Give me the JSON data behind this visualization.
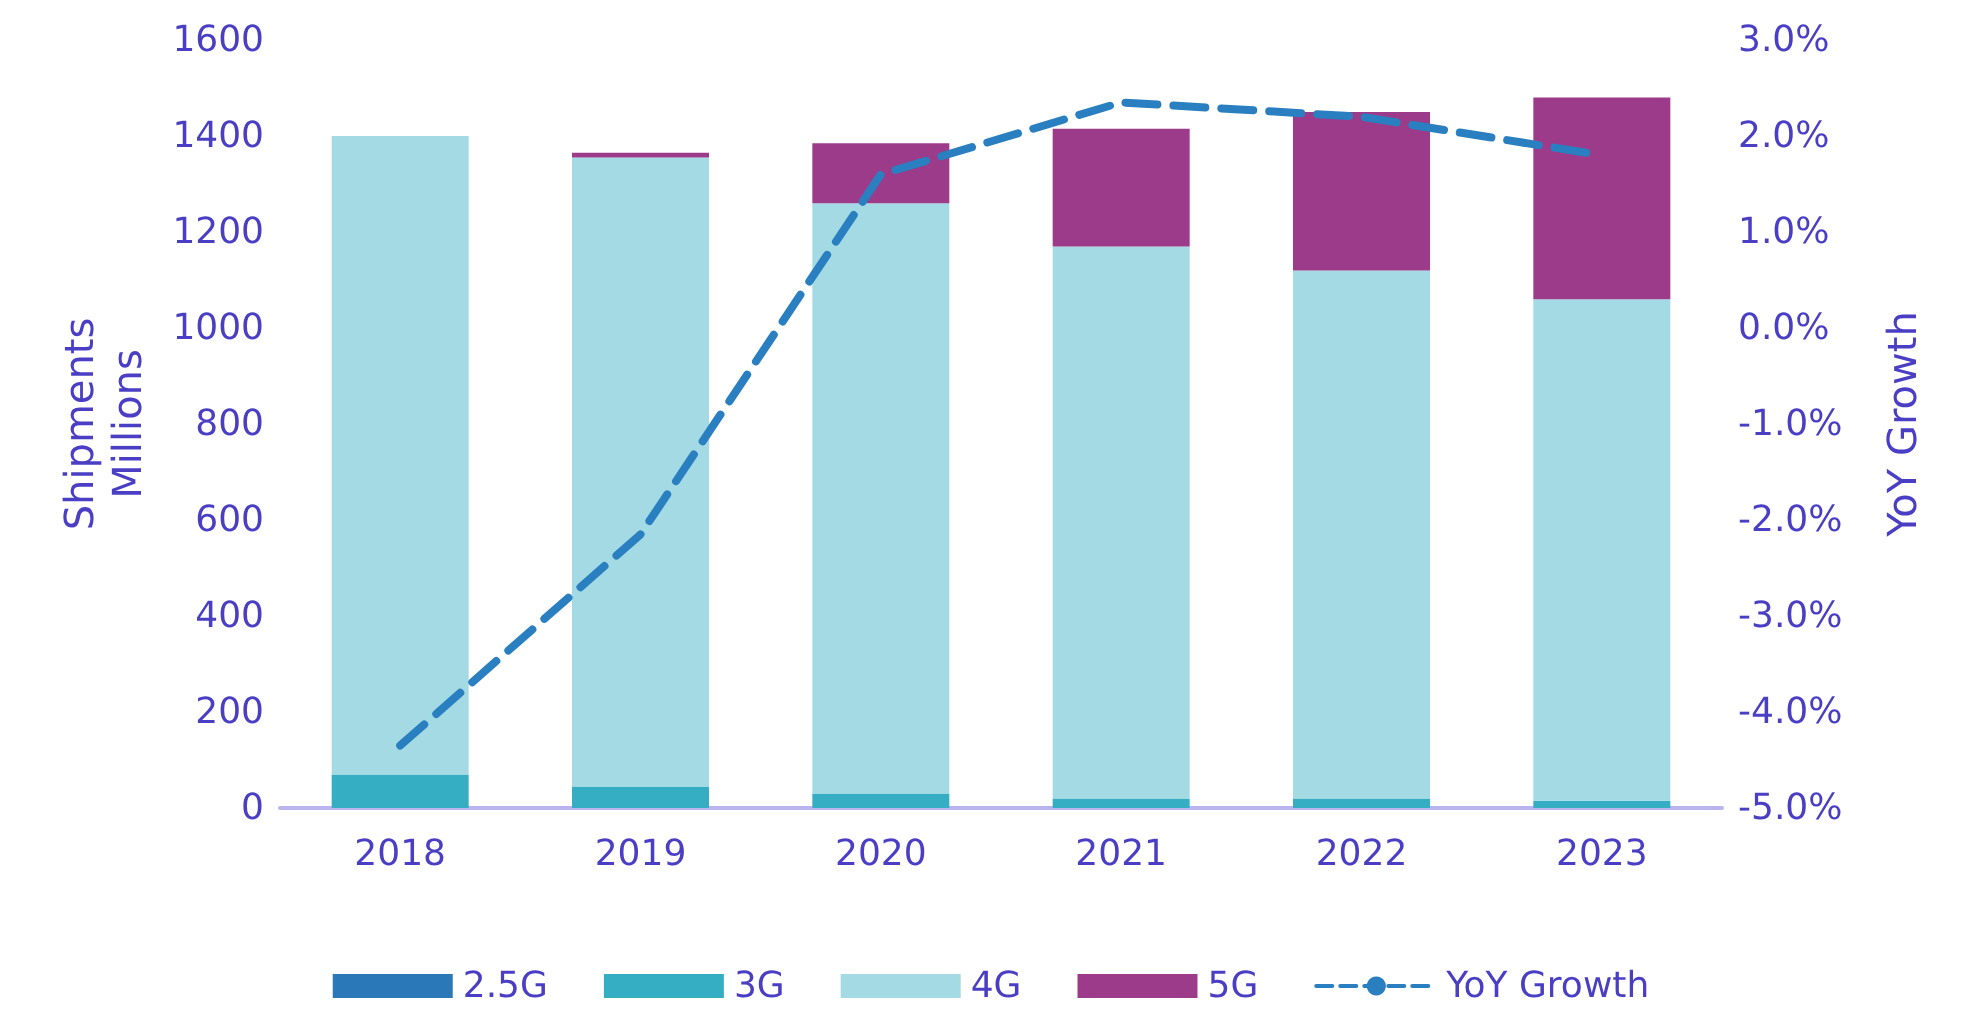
{
  "chart_data": {
    "type": "bar",
    "stacked": true,
    "ylabel": "Shipments\nMillions",
    "y2label": "YoY Growth",
    "categories": [
      "2018",
      "2019",
      "2020",
      "2021",
      "2022",
      "2023"
    ],
    "series": [
      {
        "name": "2.5G",
        "color": "#2a78b8",
        "values": [
          0,
          0,
          0,
          0,
          0,
          0
        ]
      },
      {
        "name": "3G",
        "color": "#35aec4",
        "values": [
          70,
          45,
          30,
          20,
          20,
          15
        ]
      },
      {
        "name": "4G",
        "color": "#a3dae4",
        "values": [
          1330,
          1310,
          1230,
          1150,
          1100,
          1045
        ]
      },
      {
        "name": "5G",
        "color": "#9c3b8a",
        "values": [
          0,
          10,
          125,
          245,
          330,
          420
        ]
      },
      {
        "name": "YoY Growth",
        "type": "line",
        "axis": "y2",
        "color": "#2a7fc0",
        "line_style": "dashed",
        "marker": "none",
        "values": [
          -4.35,
          -2.15,
          1.6,
          2.35,
          2.2,
          1.8
        ]
      }
    ],
    "ylim": [
      0,
      1600
    ],
    "yticks": [
      0,
      200,
      400,
      600,
      800,
      1000,
      1200,
      1400,
      1600
    ],
    "y2lim": [
      -5,
      3
    ],
    "y2ticks": [
      {
        "value": -5,
        "label": "-5.0%"
      },
      {
        "value": -4,
        "label": "-4.0%"
      },
      {
        "value": -3,
        "label": "-3.0%"
      },
      {
        "value": -2,
        "label": "-2.0%"
      },
      {
        "value": -1,
        "label": "-1.0%"
      },
      {
        "value": 0,
        "label": "0.0%"
      },
      {
        "value": 1,
        "label": "1.0%"
      },
      {
        "value": 2,
        "label": "2.0%"
      },
      {
        "value": 3,
        "label": "3.0%"
      }
    ],
    "grid": false,
    "legend": "bottom"
  }
}
